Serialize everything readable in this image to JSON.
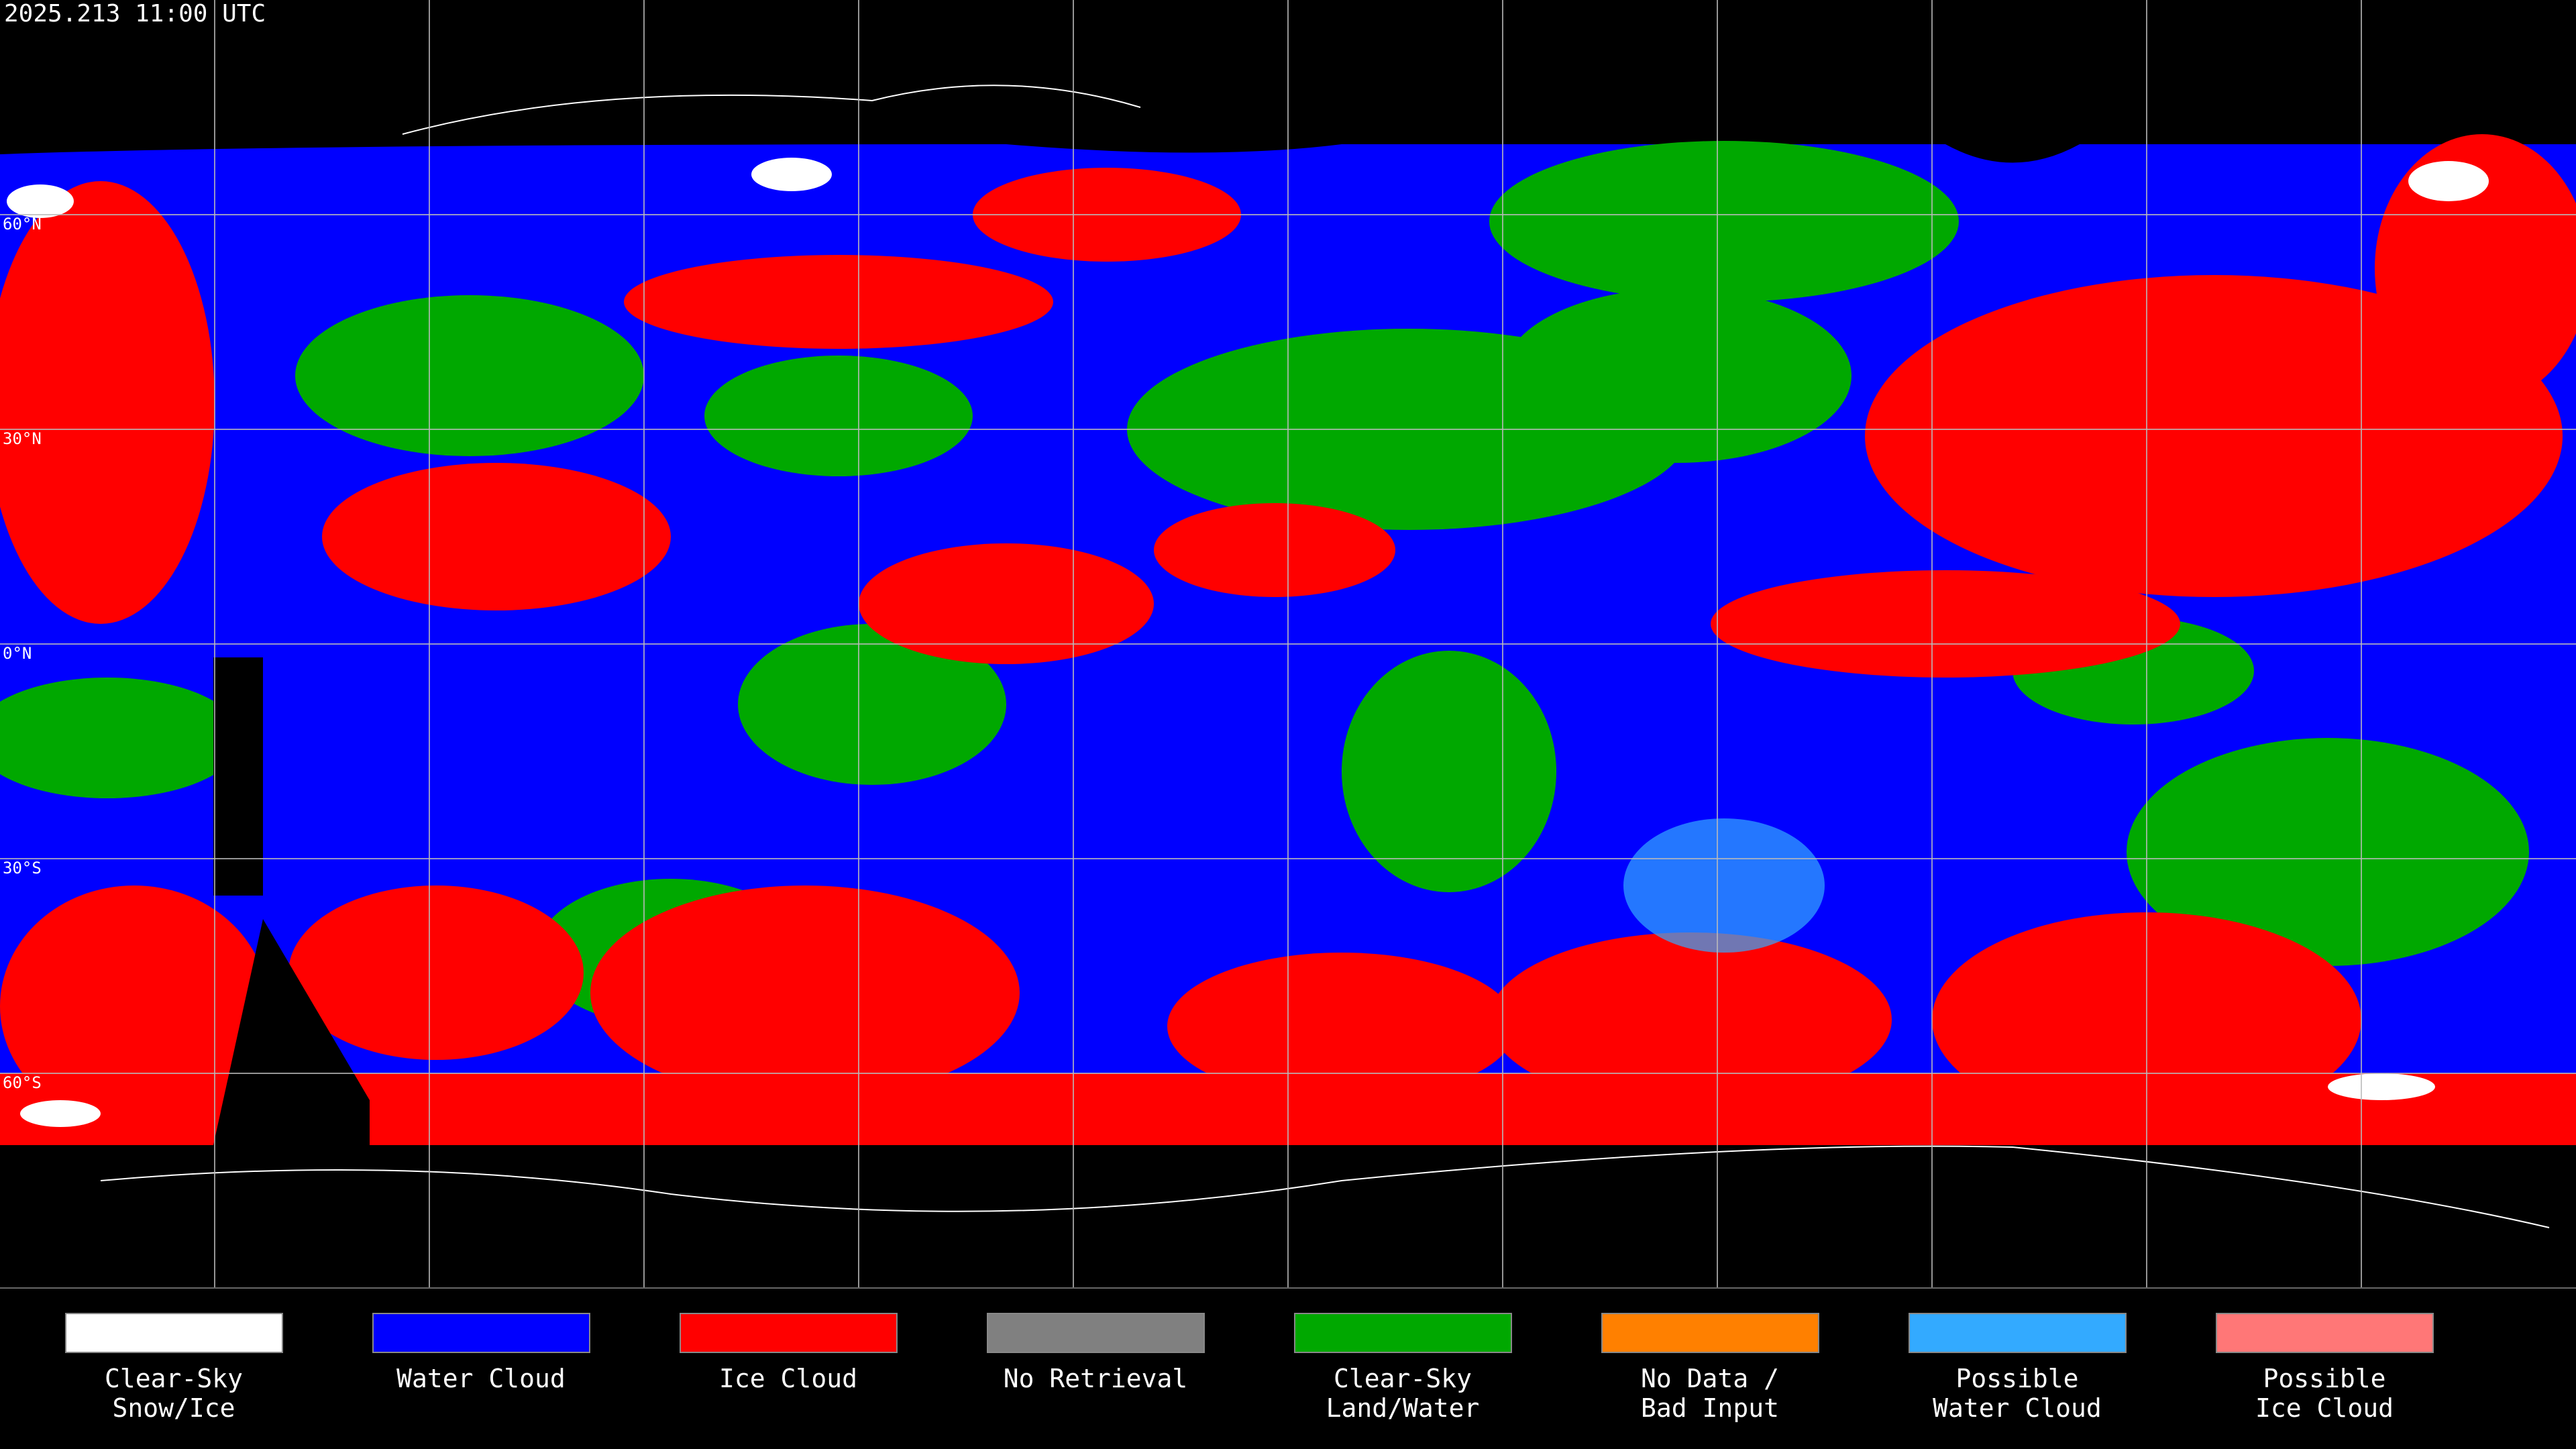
{
  "header": {
    "title": "2025.213 11:00 UTC"
  },
  "map": {
    "latitude_labels": [
      "60°N",
      "30°N",
      "0°N",
      "30°S",
      "60°S"
    ]
  },
  "legend": {
    "items": [
      {
        "label": [
          "Clear-Sky",
          "Snow/Ice"
        ],
        "color": "#ffffff"
      },
      {
        "label": [
          "Water Cloud"
        ],
        "color": "#0000ff"
      },
      {
        "label": [
          "Ice Cloud"
        ],
        "color": "#ff0000"
      },
      {
        "label": [
          "No Retrieval"
        ],
        "color": "#808080"
      },
      {
        "label": [
          "Clear-Sky",
          "Land/Water"
        ],
        "color": "#00a800"
      },
      {
        "label": [
          "No Data /",
          "Bad Input"
        ],
        "color": "#ff8000"
      },
      {
        "label": [
          "Possible",
          "Water Cloud"
        ],
        "color": "#33aaff"
      },
      {
        "label": [
          "Possible",
          "Ice Cloud"
        ],
        "color": "#ff7777"
      }
    ]
  }
}
